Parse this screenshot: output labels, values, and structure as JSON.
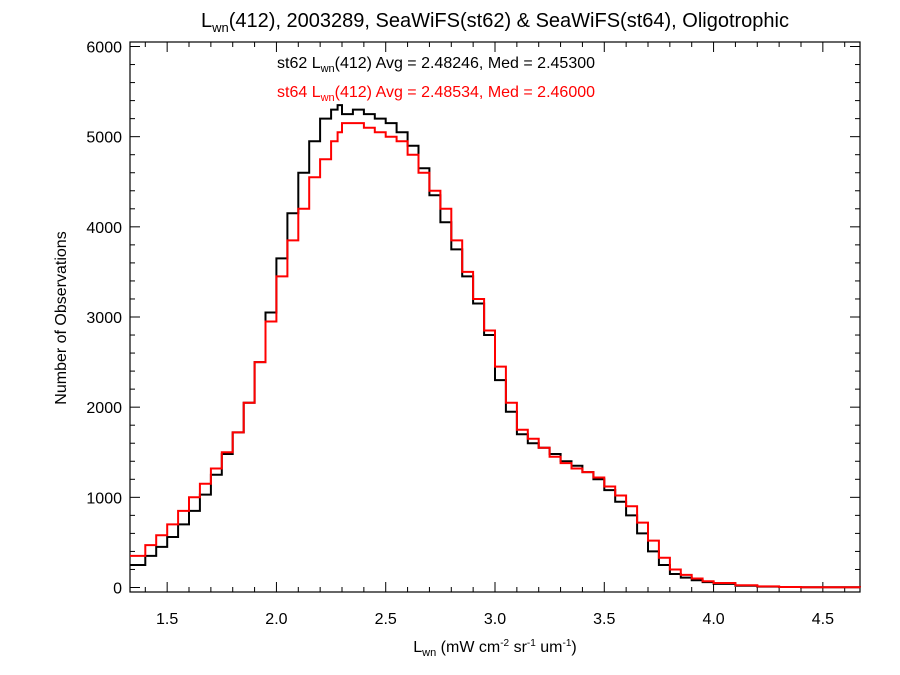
{
  "chart_data": {
    "type": "line",
    "title": {
      "prefix": "L",
      "sub": "wn",
      "suffix": "(412), 2003289, SeaWiFS(st62) & SeaWiFS(st64), Oligotrophic"
    },
    "xlabel": {
      "prefix": "L",
      "sub": "wn",
      "unit_open": " (mW cm",
      "unit_sup1": "-2",
      "unit_mid1": " sr",
      "unit_sup2": "-1",
      "unit_mid2": " um",
      "unit_sup3": "-1",
      "unit_close": ")"
    },
    "ylabel": "Number of Observations",
    "xlim": [
      1.33,
      4.67
    ],
    "ylim": [
      -50,
      6050
    ],
    "xticks": [
      1.5,
      2.0,
      2.5,
      3.0,
      3.5,
      4.0,
      4.5
    ],
    "xtick_labels": [
      "1.5",
      "2.0",
      "2.5",
      "3.0",
      "3.5",
      "4.0",
      "4.5"
    ],
    "yticks": [
      0,
      1000,
      2000,
      3000,
      4000,
      5000,
      6000
    ],
    "ytick_labels": [
      "0",
      "1000",
      "2000",
      "3000",
      "4000",
      "5000",
      "6000"
    ],
    "annotations": [
      {
        "prefix": "st62 L",
        "sub": "wn",
        "suffix": "(412) Avg = 2.48246, Med = 2.45300",
        "color": "#000000"
      },
      {
        "prefix": "st64 L",
        "sub": "wn",
        "suffix": "(412) Avg = 2.48534, Med = 2.46000",
        "color": "#ff0000"
      }
    ],
    "step": true,
    "series": [
      {
        "color": "#000000",
        "x": [
          1.33,
          1.4,
          1.45,
          1.5,
          1.55,
          1.6,
          1.65,
          1.7,
          1.75,
          1.8,
          1.85,
          1.9,
          1.95,
          2.0,
          2.05,
          2.1,
          2.15,
          2.2,
          2.25,
          2.28,
          2.3,
          2.35,
          2.4,
          2.45,
          2.5,
          2.55,
          2.6,
          2.65,
          2.7,
          2.75,
          2.8,
          2.85,
          2.9,
          2.95,
          3.0,
          3.05,
          3.1,
          3.15,
          3.2,
          3.25,
          3.3,
          3.35,
          3.4,
          3.45,
          3.5,
          3.55,
          3.6,
          3.65,
          3.7,
          3.75,
          3.8,
          3.85,
          3.9,
          3.95,
          4.0,
          4.1,
          4.2,
          4.3,
          4.4,
          4.5,
          4.67
        ],
        "y": [
          250,
          350,
          450,
          560,
          700,
          850,
          1030,
          1250,
          1480,
          1720,
          2050,
          2500,
          3050,
          3650,
          4150,
          4600,
          4950,
          5200,
          5300,
          5350,
          5250,
          5300,
          5250,
          5200,
          5150,
          5050,
          4900,
          4650,
          4350,
          4050,
          3750,
          3450,
          3150,
          2800,
          2300,
          1950,
          1700,
          1600,
          1550,
          1480,
          1400,
          1350,
          1280,
          1200,
          1080,
          950,
          800,
          600,
          400,
          250,
          150,
          110,
          80,
          60,
          40,
          20,
          10,
          5,
          3,
          2,
          0
        ]
      },
      {
        "color": "#ff0000",
        "x": [
          1.33,
          1.4,
          1.45,
          1.5,
          1.55,
          1.6,
          1.65,
          1.7,
          1.75,
          1.8,
          1.85,
          1.9,
          1.95,
          2.0,
          2.05,
          2.1,
          2.15,
          2.2,
          2.25,
          2.28,
          2.3,
          2.35,
          2.4,
          2.45,
          2.5,
          2.55,
          2.6,
          2.65,
          2.7,
          2.75,
          2.8,
          2.85,
          2.9,
          2.95,
          3.0,
          3.05,
          3.1,
          3.15,
          3.2,
          3.25,
          3.3,
          3.35,
          3.4,
          3.45,
          3.5,
          3.55,
          3.6,
          3.65,
          3.7,
          3.75,
          3.8,
          3.85,
          3.9,
          3.95,
          4.0,
          4.1,
          4.2,
          4.3,
          4.4,
          4.5,
          4.67
        ],
        "y": [
          350,
          470,
          580,
          700,
          850,
          1000,
          1150,
          1320,
          1500,
          1720,
          2050,
          2500,
          2950,
          3450,
          3850,
          4200,
          4550,
          4750,
          4950,
          5050,
          5150,
          5150,
          5100,
          5050,
          5000,
          4950,
          4800,
          4600,
          4400,
          4200,
          3850,
          3500,
          3200,
          2850,
          2450,
          2050,
          1750,
          1650,
          1550,
          1450,
          1380,
          1320,
          1280,
          1220,
          1120,
          1020,
          900,
          720,
          520,
          330,
          200,
          140,
          100,
          70,
          50,
          25,
          12,
          6,
          3,
          2,
          0
        ]
      }
    ]
  }
}
